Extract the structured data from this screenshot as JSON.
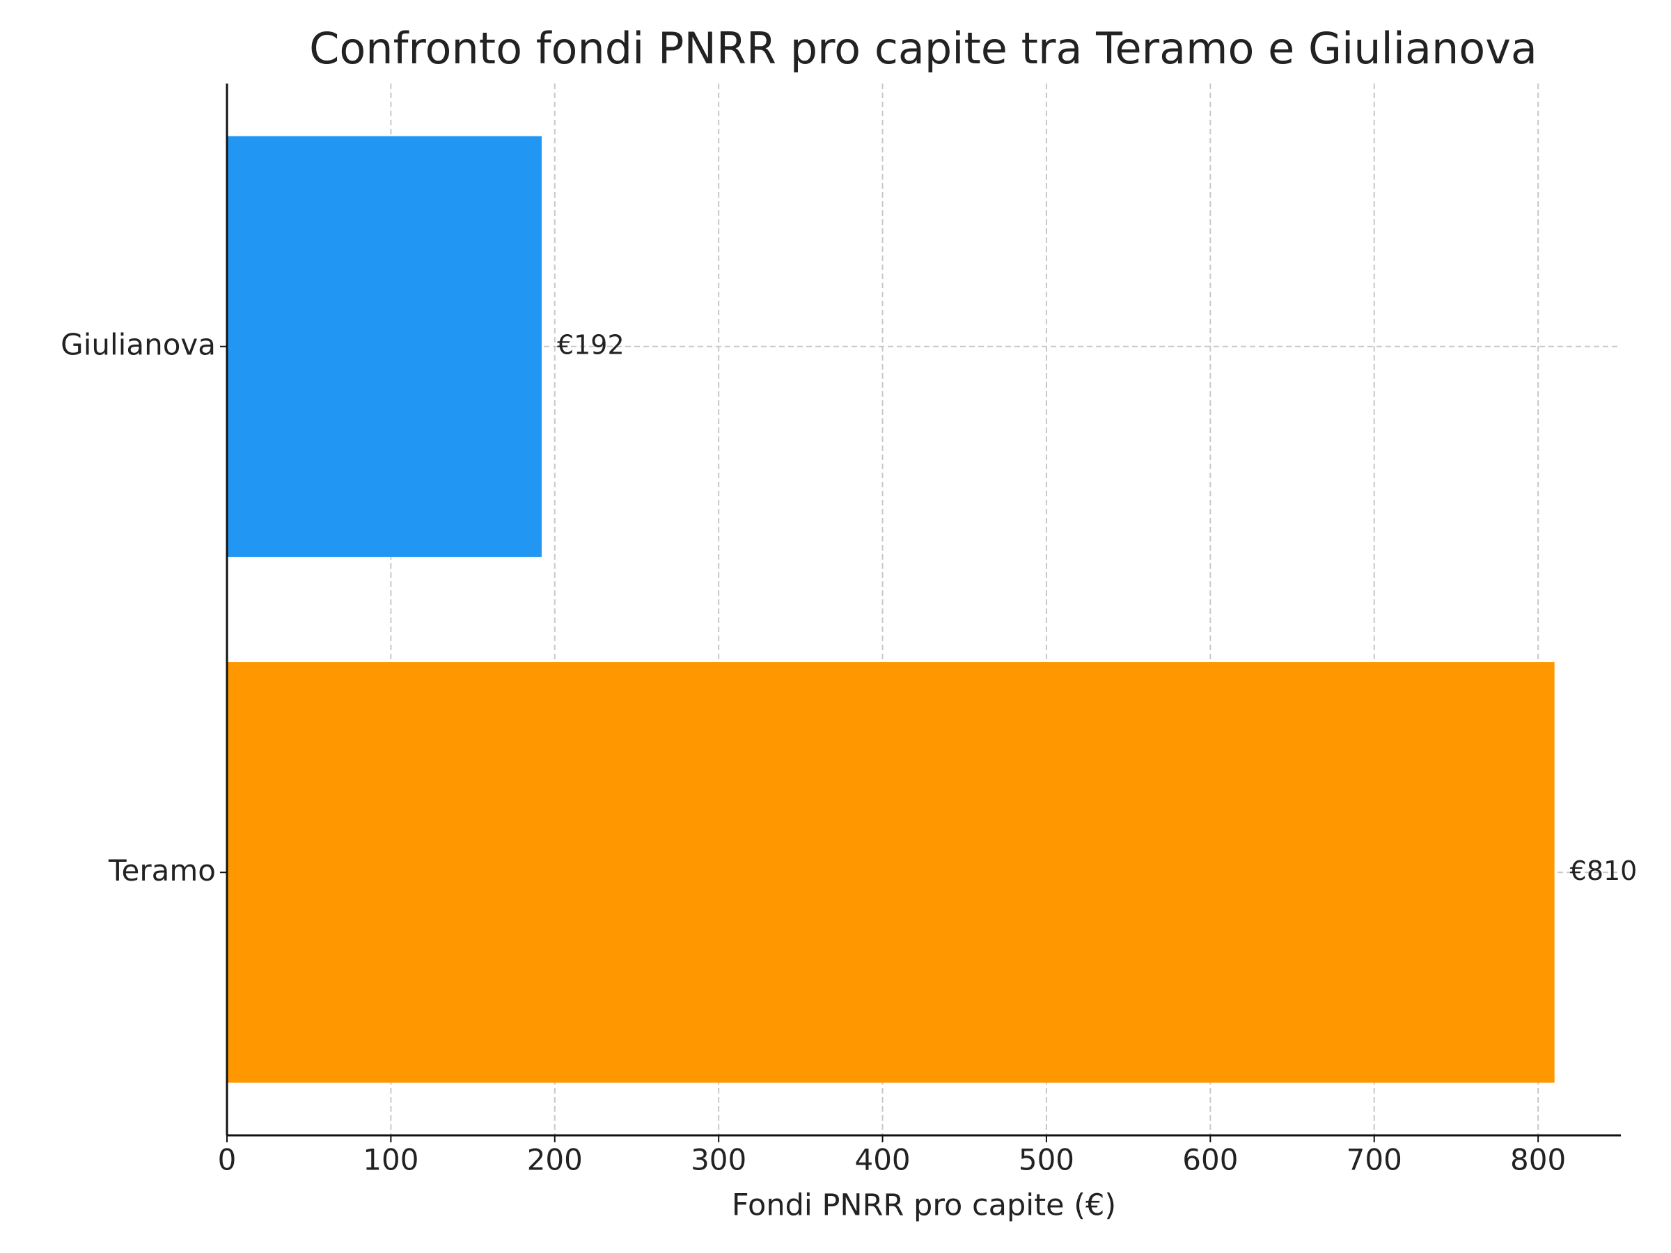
{
  "chart_data": {
    "type": "barh",
    "title": "Confronto fondi PNRR pro capite tra Teramo e Giulianova",
    "x_label": "Fondi PNRR pro capite (€)",
    "categories": [
      "Teramo",
      "Giulianova"
    ],
    "values": [
      810,
      192
    ],
    "value_labels": [
      "€810",
      "€192"
    ],
    "colors": [
      "#ff9800",
      "#2196f3"
    ],
    "xlim": [
      0,
      850.5
    ],
    "xticks": [
      0,
      100,
      200,
      300,
      400,
      500,
      600,
      700,
      800
    ],
    "grid": true
  }
}
